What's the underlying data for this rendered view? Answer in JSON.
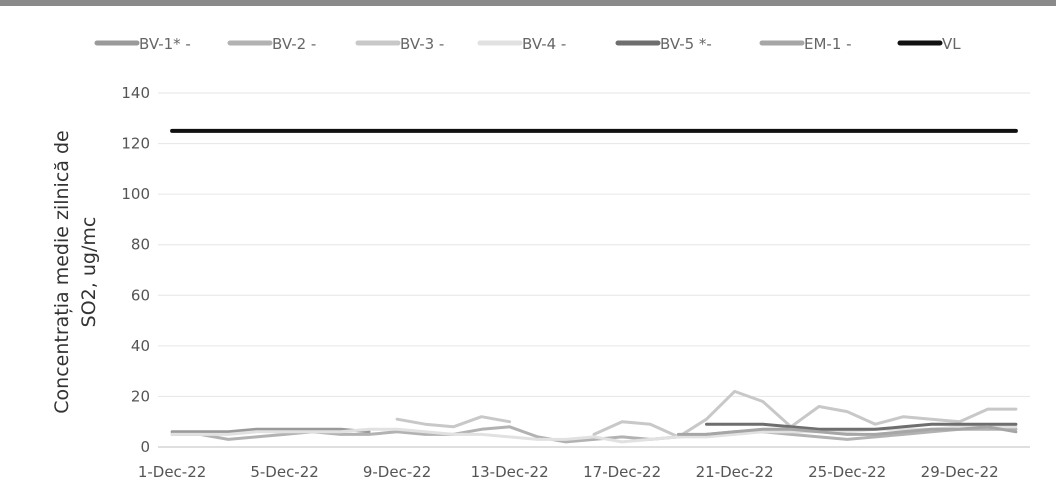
{
  "chart_data": {
    "type": "line",
    "title": "",
    "xlabel": "",
    "ylabel_lines": [
      "Concentrația medie zilnică de",
      "SO2, ug/mc"
    ],
    "ylim": [
      0,
      140
    ],
    "yticks": [
      0,
      20,
      40,
      60,
      80,
      100,
      120,
      140
    ],
    "x_tick_labels": [
      "1-Dec-22",
      "5-Dec-22",
      "9-Dec-22",
      "13-Dec-22",
      "17-Dec-22",
      "21-Dec-22",
      "25-Dec-22",
      "29-Dec-22"
    ],
    "grid": true,
    "legend_position": "top",
    "x": [
      "1-Dec-22",
      "2-Dec-22",
      "3-Dec-22",
      "4-Dec-22",
      "5-Dec-22",
      "6-Dec-22",
      "7-Dec-22",
      "8-Dec-22",
      "9-Dec-22",
      "10-Dec-22",
      "11-Dec-22",
      "12-Dec-22",
      "13-Dec-22",
      "14-Dec-22",
      "15-Dec-22",
      "16-Dec-22",
      "17-Dec-22",
      "18-Dec-22",
      "19-Dec-22",
      "20-Dec-22",
      "21-Dec-22",
      "22-Dec-22",
      "23-Dec-22",
      "24-Dec-22",
      "25-Dec-22",
      "26-Dec-22",
      "27-Dec-22",
      "28-Dec-22",
      "29-Dec-22",
      "30-Dec-22",
      "31-Dec-22"
    ],
    "series": [
      {
        "name": "BV-1* -",
        "color": "#9a9a9a",
        "width": 3,
        "values": [
          6,
          6,
          6,
          7,
          7,
          7,
          7,
          6,
          null,
          null,
          null,
          null,
          null,
          null,
          null,
          null,
          null,
          null,
          null,
          null,
          null,
          null,
          null,
          null,
          null,
          null,
          null,
          null,
          null,
          null,
          null
        ]
      },
      {
        "name": "BV-2 -",
        "color": "#b2b2b2",
        "width": 3,
        "values": [
          5,
          5,
          3,
          4,
          5,
          6,
          5,
          5,
          6,
          5,
          5,
          7,
          8,
          4,
          2,
          3,
          4,
          3,
          4,
          5,
          6,
          6,
          5,
          4,
          3,
          4,
          5,
          6,
          7,
          7,
          7
        ]
      },
      {
        "name": "BV-3 -",
        "color": "#c8c8c8",
        "width": 3,
        "values": [
          null,
          null,
          null,
          null,
          null,
          null,
          null,
          null,
          11,
          9,
          8,
          12,
          10,
          null,
          null,
          5,
          10,
          9,
          4,
          11,
          22,
          18,
          8,
          16,
          14,
          9,
          12,
          11,
          10,
          15,
          15
        ]
      },
      {
        "name": "BV-4 -",
        "color": "#e1e1e1",
        "width": 3,
        "values": [
          5,
          5,
          5,
          6,
          6,
          6,
          6,
          7,
          7,
          6,
          5,
          5,
          4,
          3,
          3,
          4,
          2,
          3,
          4,
          4,
          5,
          6,
          6,
          6,
          6,
          7,
          7,
          7,
          8,
          8,
          8
        ]
      },
      {
        "name": "BV-5 *-",
        "color": "#6e6e6e",
        "width": 3,
        "values": [
          null,
          null,
          null,
          null,
          null,
          null,
          null,
          null,
          null,
          null,
          null,
          null,
          null,
          null,
          null,
          null,
          null,
          null,
          null,
          9,
          9,
          9,
          8,
          7,
          7,
          7,
          8,
          9,
          9,
          9,
          9
        ]
      },
      {
        "name": "EM-1 -",
        "color": "#a6a6a6",
        "width": 3,
        "values": [
          null,
          null,
          null,
          null,
          null,
          null,
          null,
          null,
          null,
          null,
          null,
          null,
          null,
          null,
          null,
          null,
          null,
          null,
          5,
          5,
          6,
          7,
          7,
          6,
          5,
          5,
          6,
          7,
          7,
          8,
          6
        ]
      },
      {
        "name": "VL",
        "color": "#111111",
        "width": 4,
        "values": [
          125,
          125,
          125,
          125,
          125,
          125,
          125,
          125,
          125,
          125,
          125,
          125,
          125,
          125,
          125,
          125,
          125,
          125,
          125,
          125,
          125,
          125,
          125,
          125,
          125,
          125,
          125,
          125,
          125,
          125,
          125
        ]
      }
    ]
  }
}
